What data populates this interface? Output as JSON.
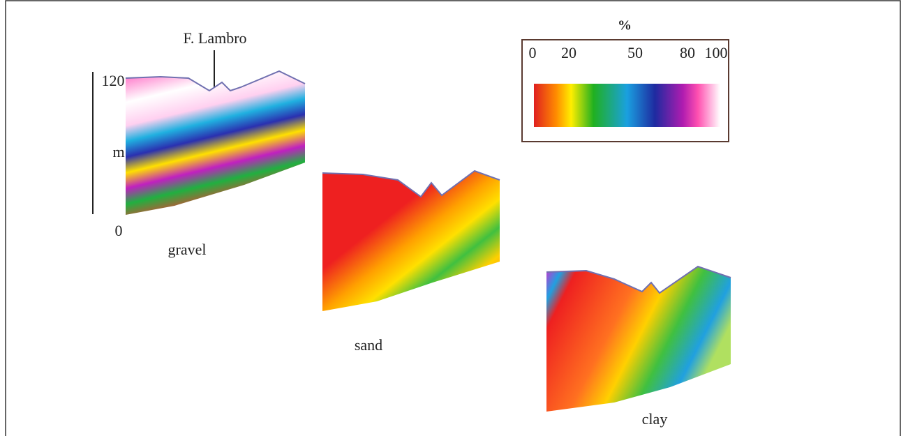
{
  "annotation": "F. Lambro",
  "depth_axis": {
    "top": "120",
    "unit": "m",
    "bottom": "0"
  },
  "sections": [
    {
      "label": "gravel"
    },
    {
      "label": "sand"
    },
    {
      "label": "clay"
    }
  ],
  "colorbar": {
    "title": "%",
    "ticks": [
      "0",
      "20",
      "50",
      "80",
      "100"
    ]
  }
}
